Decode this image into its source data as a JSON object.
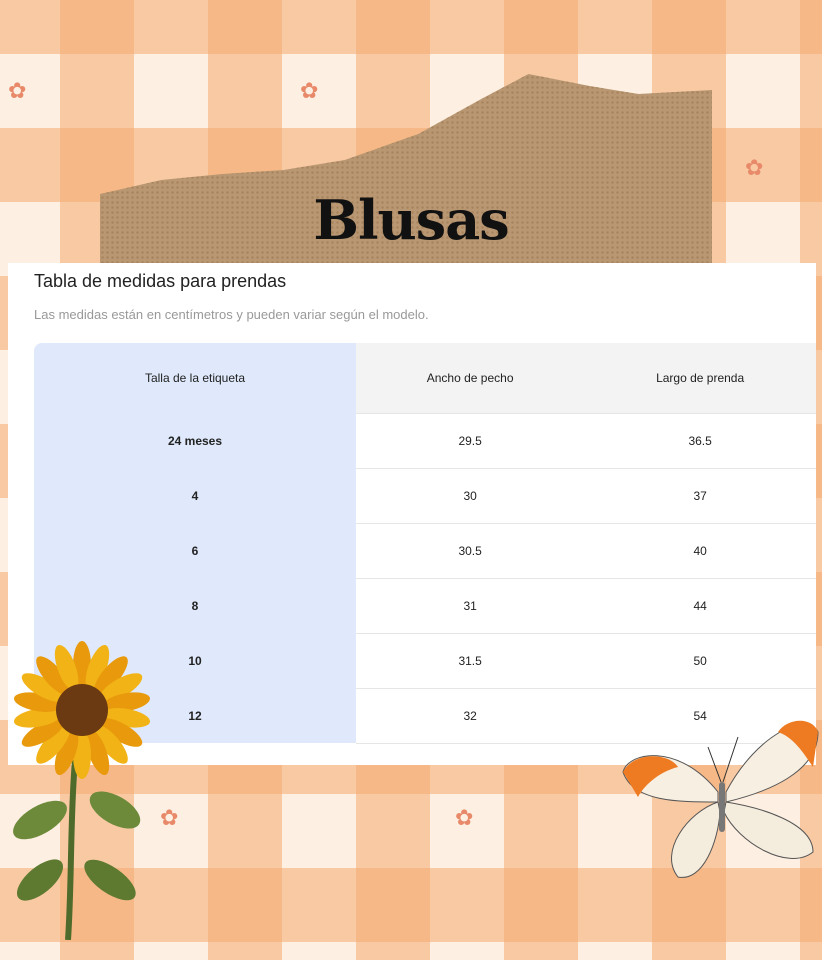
{
  "banner": {
    "title": "Blusas"
  },
  "card": {
    "title": "Tabla de medidas para prendas",
    "subtitle": "Las medidas están en centímetros y pueden variar según el modelo.",
    "columns": [
      "Talla de la etiqueta",
      "Ancho de pecho",
      "Largo de prenda"
    ],
    "rows": [
      [
        "24 meses",
        "29.5",
        "36.5"
      ],
      [
        "4",
        "30",
        "37"
      ],
      [
        "6",
        "30.5",
        "40"
      ],
      [
        "8",
        "31",
        "44"
      ],
      [
        "10",
        "31.5",
        "50"
      ],
      [
        "12",
        "32",
        "54"
      ]
    ]
  },
  "colors": {
    "accent_column": "#dfe9fb",
    "gingham": "#f4aa6e"
  }
}
